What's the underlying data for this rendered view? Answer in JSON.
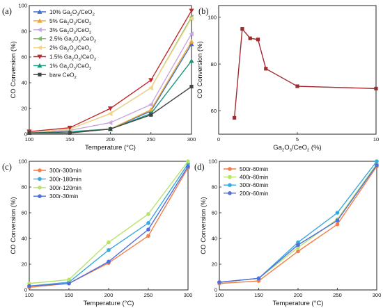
{
  "chart_data": [
    {
      "type": "line",
      "panel_label": "(a)",
      "xlabel": "Temperature (°C)",
      "ylabel": "CO Conversion (%)",
      "xlim": [
        100,
        300
      ],
      "ylim": [
        0,
        100
      ],
      "xticks": [
        100,
        150,
        200,
        250,
        300
      ],
      "yticks": [
        0,
        20,
        40,
        60,
        80,
        100
      ],
      "legend_position": "top-left",
      "x": [
        100,
        150,
        200,
        250,
        300
      ],
      "series": [
        {
          "name": "10% Ga2O3/CeO2",
          "label_main": "10% Ga",
          "label_mid": "O",
          "label_end": "/CeO",
          "label_tail": "",
          "color": "#3f6fcf",
          "marker": "triangle-up",
          "values": [
            1,
            1,
            4,
            18,
            70
          ]
        },
        {
          "name": "5% Ga2O3/CeO2",
          "label_main": "5% Ga",
          "label_mid": "O",
          "label_end": "/CeO",
          "label_tail": "",
          "color": "#f0a830",
          "marker": "triangle-up",
          "values": [
            1,
            1,
            4,
            19,
            72
          ]
        },
        {
          "name": "3% Ga2O3/CeO2",
          "label_main": "3% Ga",
          "label_mid": "O",
          "label_end": "/CeO",
          "label_tail": "",
          "color": "#c9a6e0",
          "marker": "triangle-left",
          "values": [
            1,
            3,
            9,
            23,
            78
          ]
        },
        {
          "name": "2.5% Ga2O3/CeO2",
          "label_main": "2.5% Ga",
          "label_mid": "O",
          "label_end": "/CeO",
          "label_tail": "",
          "color": "#74bd5a",
          "marker": "triangle-left",
          "values": [
            1,
            4,
            16,
            36,
            91
          ]
        },
        {
          "name": "2% Ga2O3/CeO2",
          "label_main": "2% Ga",
          "label_mid": "O",
          "label_end": "/CeO",
          "label_tail": "",
          "color": "#f4d58a",
          "marker": "triangle-left",
          "values": [
            1,
            4,
            16,
            36,
            90
          ]
        },
        {
          "name": "1.5% Ga2O3/CeO2",
          "label_main": "1.5% Ga",
          "label_mid": "O",
          "label_end": "/CeO",
          "label_tail": "",
          "color": "#c0282e",
          "marker": "triangle-down",
          "values": [
            2,
            5,
            20,
            42,
            96
          ]
        },
        {
          "name": "1% Ga2O3/CeO2",
          "label_main": "1% Ga",
          "label_mid": "O",
          "label_end": "/CeO",
          "label_tail": "",
          "color": "#17967a",
          "marker": "triangle-up",
          "values": [
            1,
            2,
            4,
            16,
            57
          ]
        },
        {
          "name": "bare CeO2",
          "label_main": "bare CeO",
          "label_mid": "",
          "label_end": "",
          "label_tail": "",
          "color": "#444444",
          "marker": "square",
          "values": [
            1,
            1,
            4,
            15,
            37
          ]
        }
      ]
    },
    {
      "type": "line",
      "panel_label": "(b)",
      "xlabel": "Ga2O3/CeO2 (%)",
      "ylabel": "CO Conversion (%)",
      "xlim": [
        0,
        10
      ],
      "ylim": [
        50,
        105
      ],
      "xticks": [
        0,
        5,
        10
      ],
      "yticks": [
        60,
        80,
        100
      ],
      "x": [
        1,
        1.5,
        2,
        2.5,
        3,
        5,
        10
      ],
      "series": [
        {
          "name": "",
          "color": "#a12a2f",
          "marker": "square",
          "values": [
            57,
            95,
            91,
            90.5,
            78,
            70.5,
            69.5
          ]
        }
      ]
    },
    {
      "type": "line",
      "panel_label": "(c)",
      "xlabel": "Temperature (°C)",
      "ylabel": "CO Conversion (%)",
      "xlim": [
        100,
        300
      ],
      "ylim": [
        0,
        100
      ],
      "xticks": [
        100,
        150,
        200,
        250,
        300
      ],
      "yticks": [
        0,
        20,
        40,
        60,
        80,
        100
      ],
      "legend_position": "top-left",
      "x": [
        100,
        150,
        200,
        250,
        300
      ],
      "series": [
        {
          "name": "300r-300min",
          "color": "#f47d45",
          "marker": "circle",
          "values": [
            2,
            5,
            21,
            42,
            95
          ]
        },
        {
          "name": "300r-180min",
          "color": "#36a9e1",
          "marker": "circle",
          "values": [
            3,
            6,
            31,
            52,
            98
          ]
        },
        {
          "name": "300r-120min",
          "color": "#b9e26a",
          "marker": "circle",
          "values": [
            5,
            8,
            37,
            59,
            100
          ]
        },
        {
          "name": "300r-30min",
          "color": "#4f6fdd",
          "marker": "circle",
          "values": [
            3,
            5,
            22,
            47,
            96
          ]
        }
      ]
    },
    {
      "type": "line",
      "panel_label": "(d)",
      "xlabel": "Temperature (°C)",
      "ylabel": "CO Conversion (%)",
      "xlim": [
        100,
        300
      ],
      "ylim": [
        0,
        100
      ],
      "xticks": [
        100,
        150,
        200,
        250,
        300
      ],
      "yticks": [
        0,
        20,
        40,
        60,
        80,
        100
      ],
      "legend_position": "top-left",
      "x": [
        100,
        150,
        200,
        250,
        300
      ],
      "series": [
        {
          "name": "500r-60min",
          "color": "#f47d45",
          "marker": "circle",
          "values": [
            5,
            7,
            30,
            51,
            96
          ]
        },
        {
          "name": "400r-60min",
          "color": "#b9e26a",
          "marker": "circle",
          "values": [
            6,
            9,
            33,
            55,
            98
          ]
        },
        {
          "name": "300r-60min",
          "color": "#36a9e1",
          "marker": "circle",
          "values": [
            6,
            9,
            37,
            60,
            100
          ]
        },
        {
          "name": "200r-60min",
          "color": "#4f6fdd",
          "marker": "circle",
          "values": [
            6,
            9,
            35,
            54,
            97
          ]
        }
      ]
    }
  ]
}
